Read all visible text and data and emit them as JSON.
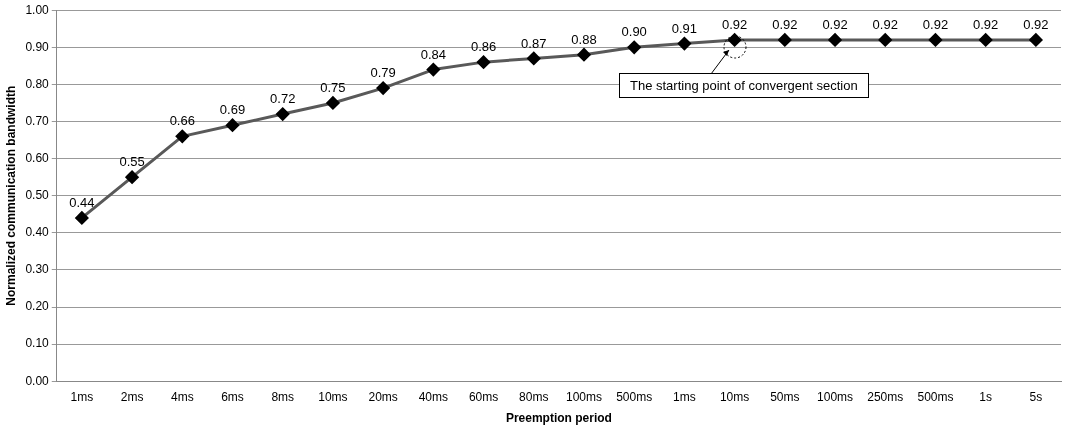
{
  "chart_data": {
    "type": "line",
    "xlabel": "Preemption period",
    "ylabel": "Normalized communication bandwidth",
    "categories": [
      "1ms",
      "2ms",
      "4ms",
      "6ms",
      "8ms",
      "10ms",
      "20ms",
      "40ms",
      "60ms",
      "80ms",
      "100ms",
      "500ms",
      "1ms",
      "10ms",
      "50ms",
      "100ms",
      "250ms",
      "500ms",
      "1s",
      "5s"
    ],
    "series": [
      {
        "color": "#595959",
        "values": [
          0.44,
          0.55,
          0.66,
          0.69,
          0.72,
          0.75,
          0.79,
          0.84,
          0.86,
          0.87,
          0.88,
          0.9,
          0.91,
          0.92,
          0.92,
          0.92,
          0.92,
          0.92,
          0.92,
          0.92
        ],
        "value_labels": [
          "0.44",
          "0.55",
          "0.66",
          "0.69",
          "0.72",
          "0.75",
          "0.79",
          "0.84",
          "0.86",
          "0.87",
          "0.88",
          "0.90",
          "0.91",
          "0.92",
          "0.92",
          "0.92",
          "0.92",
          "0.92",
          "0.92",
          "0.92"
        ]
      }
    ],
    "ylim": [
      0,
      1
    ],
    "yticks": [
      {
        "value": 0,
        "label": "0.00"
      },
      {
        "value": 0.1,
        "label": "0.10"
      },
      {
        "value": 0.2,
        "label": "0.20"
      },
      {
        "value": 0.3,
        "label": "0.30"
      },
      {
        "value": 0.4,
        "label": "0.40"
      },
      {
        "value": 0.5,
        "label": "0.50"
      },
      {
        "value": 0.6,
        "label": "0.60"
      },
      {
        "value": 0.7,
        "label": "0.70"
      },
      {
        "value": 0.8,
        "label": "0.80"
      },
      {
        "value": 0.9,
        "label": "0.90"
      },
      {
        "value": 1,
        "label": "1.00"
      }
    ],
    "grid": "y",
    "legend": false,
    "marker": "diamond",
    "line_style": "solid",
    "annotations": [
      "The starting point of convergent section"
    ]
  }
}
